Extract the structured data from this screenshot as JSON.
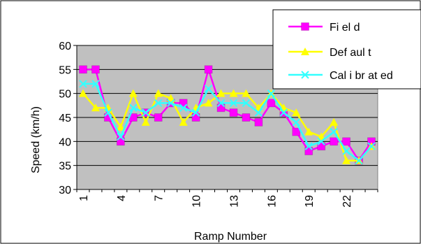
{
  "chart_data": {
    "type": "line",
    "title": "",
    "xlabel": "Ramp Number",
    "ylabel": "Speed (km/h)",
    "ylim": [
      30,
      60
    ],
    "yticks": [
      30,
      35,
      40,
      45,
      50,
      55,
      60
    ],
    "x": [
      1,
      2,
      3,
      4,
      5,
      6,
      7,
      8,
      9,
      10,
      11,
      12,
      13,
      14,
      15,
      16,
      17,
      18,
      19,
      20,
      21,
      22,
      23,
      24
    ],
    "xtick_labels": [
      "1",
      "4",
      "7",
      "10",
      "13",
      "16",
      "19",
      "22"
    ],
    "xtick_values": [
      1,
      4,
      7,
      10,
      13,
      16,
      19,
      22
    ],
    "grid": "horizontal",
    "legend_position": "top-right",
    "series": [
      {
        "name": "Fi el d",
        "color": "#ff00ff",
        "marker": "square",
        "values": [
          55,
          55,
          45,
          40,
          45,
          46,
          45,
          48,
          48,
          45,
          55,
          47,
          46,
          45,
          44,
          48,
          46,
          42,
          38,
          39,
          40,
          40,
          36,
          40
        ]
      },
      {
        "name": "Def aul t",
        "color": "#ffff00",
        "marker": "triangle",
        "values": [
          50,
          47,
          47,
          43,
          50,
          44,
          50,
          49,
          44,
          47,
          48,
          50,
          50,
          50,
          47,
          50,
          47,
          46,
          42,
          41,
          44,
          36,
          36,
          39
        ]
      },
      {
        "name": "Cal i br at ed",
        "color": "#33ffff",
        "marker": "x",
        "values": [
          52,
          52,
          46,
          41,
          47,
          46,
          48,
          48,
          47,
          46,
          51,
          48,
          48,
          48,
          46,
          50,
          46,
          44,
          39,
          40,
          42,
          38,
          36,
          39
        ]
      }
    ]
  }
}
